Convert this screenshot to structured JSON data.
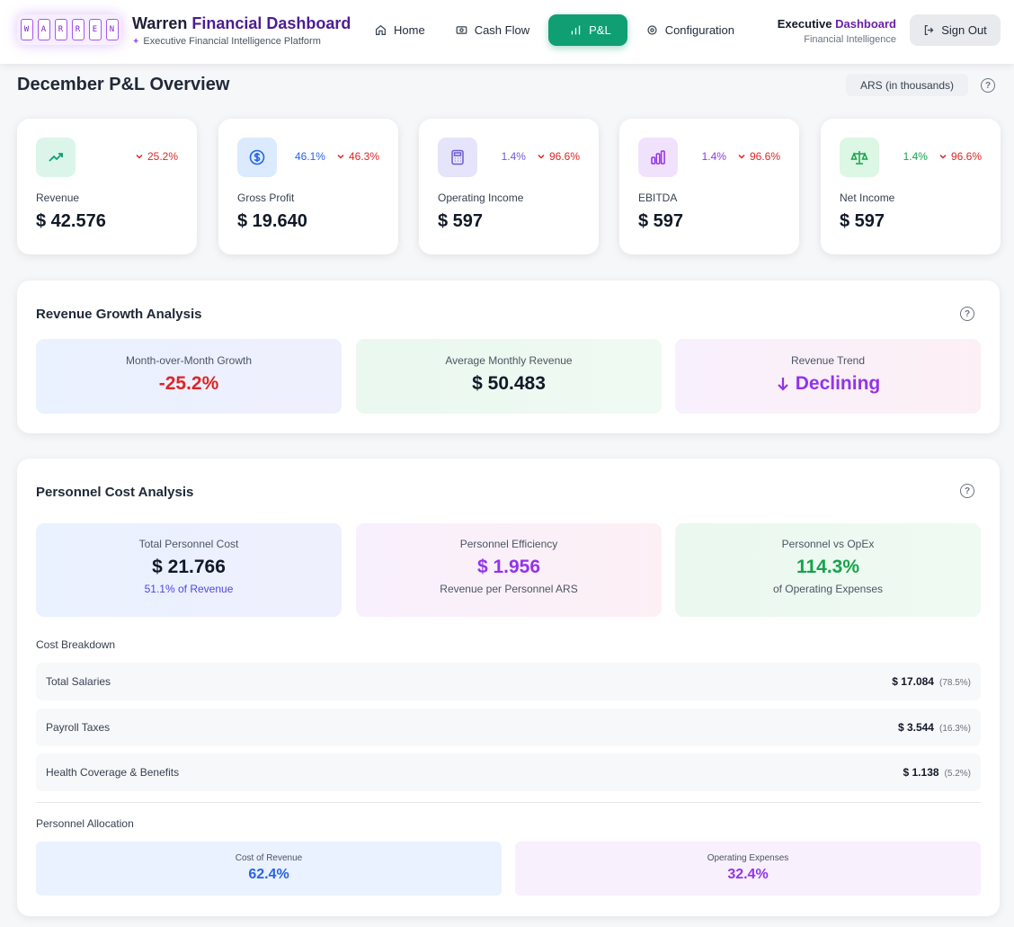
{
  "header": {
    "logo_letters": [
      "W",
      "A",
      "R",
      "R",
      "E",
      "N"
    ],
    "title_main": "Warren ",
    "title_accent": "Financial Dashboard",
    "subtitle": "Executive Financial Intelligence Platform",
    "nav": [
      {
        "label": "Home",
        "icon": "home-icon"
      },
      {
        "label": "Cash Flow",
        "icon": "cash-icon"
      },
      {
        "label": "P&L",
        "icon": "bar-chart-icon",
        "active": true
      },
      {
        "label": "Configuration",
        "icon": "gear-icon"
      }
    ],
    "exec_title_main": "Executive ",
    "exec_title_accent": "Dashboard",
    "exec_sub": "Financial Intelligence",
    "signout": "Sign Out"
  },
  "page": {
    "title": "December P&L Overview",
    "currency": "ARS (in thousands)"
  },
  "kpis": [
    {
      "label": "Revenue",
      "value": "$ 42.576",
      "change_primary": "",
      "change_down": "25.2%",
      "icon": "trending-up-icon"
    },
    {
      "label": "Gross Profit",
      "value": "$ 19.640",
      "change_primary": "46.1%",
      "change_down": "46.3%",
      "icon": "dollar-icon"
    },
    {
      "label": "Operating Income",
      "value": "$ 597",
      "change_primary": "1.4%",
      "change_down": "96.6%",
      "icon": "calculator-icon"
    },
    {
      "label": "EBITDA",
      "value": "$ 597",
      "change_primary": "1.4%",
      "change_down": "96.6%",
      "icon": "bar-chart-icon"
    },
    {
      "label": "Net Income",
      "value": "$ 597",
      "change_primary": "1.4%",
      "change_down": "96.6%",
      "icon": "scale-icon"
    }
  ],
  "revenue_growth": {
    "title": "Revenue Growth Analysis",
    "mom_label": "Month-over-Month Growth",
    "mom_value": "-25.2%",
    "avg_label": "Average Monthly Revenue",
    "avg_value": "$ 50.483",
    "trend_label": "Revenue Trend",
    "trend_value": "Declining"
  },
  "personnel": {
    "title": "Personnel Cost Analysis",
    "total_label": "Total Personnel Cost",
    "total_value": "$ 21.766",
    "total_sub": "51.1% of Revenue",
    "eff_label": "Personnel Efficiency",
    "eff_value": "$ 1.956",
    "eff_sub": "Revenue per Personnel ARS",
    "opex_label": "Personnel vs OpEx",
    "opex_value": "114.3%",
    "opex_sub": "of Operating Expenses",
    "breakdown_title": "Cost Breakdown",
    "breakdown": [
      {
        "name": "Total Salaries",
        "value": "$ 17.084",
        "pct": "(78.5%)"
      },
      {
        "name": "Payroll Taxes",
        "value": "$ 3.544",
        "pct": "(16.3%)"
      },
      {
        "name": "Health Coverage & Benefits",
        "value": "$ 1.138",
        "pct": "(5.2%)"
      }
    ],
    "allocation_title": "Personnel Allocation",
    "alloc_cor_label": "Cost of Revenue",
    "alloc_cor_value": "62.4%",
    "alloc_opex_label": "Operating Expenses",
    "alloc_opex_value": "32.4%"
  },
  "colors": {
    "brand_green": "#0f9f73",
    "down_red": "#dc2626",
    "purple": "#9333ea",
    "blue": "#2563eb",
    "green": "#16a34a"
  }
}
